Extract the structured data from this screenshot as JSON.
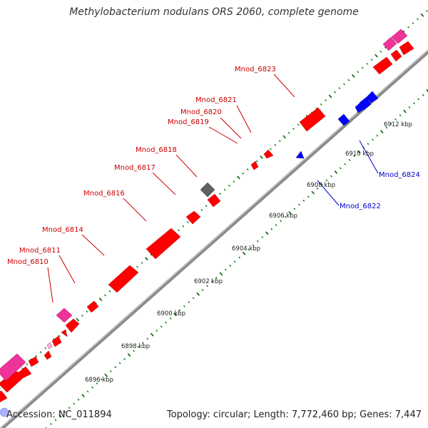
{
  "header": {
    "title": "Methylobacterium nodulans ORS 2060, complete genome"
  },
  "footer": {
    "accession": "Accession: NC_011894",
    "stats": "Topology: circular; Length: 7,772,460 bp; Genes: 7,447"
  },
  "colors": {
    "backbone": "#8a8a8a",
    "forward_gene": "#ff0000",
    "reverse_gene": "#0000ff",
    "rna_gene": "#ee3399",
    "pseudo_gene": "#606060",
    "tick_minor": "#1a8a1a",
    "tick_major": "#006400",
    "forward_label": "#cc0000",
    "reverse_label": "#0000cc",
    "scale_text": "#222222"
  },
  "scale_labels": [
    "6896 kbp",
    "6898 kbp",
    "6900 kbp",
    "6902 kbp",
    "6904 kbp",
    "6906 kbp",
    "6908 kbp",
    "6910 kbp",
    "6912 kbp"
  ],
  "gene_labels": {
    "forward": [
      "Mnod_6810",
      "Mnod_6811",
      "Mnod_6814",
      "Mnod_6816",
      "Mnod_6817",
      "Mnod_6818",
      "Mnod_6819",
      "Mnod_6820",
      "Mnod_6821",
      "Mnod_6823"
    ],
    "reverse": [
      "Mnod_6822",
      "Mnod_6824"
    ]
  }
}
